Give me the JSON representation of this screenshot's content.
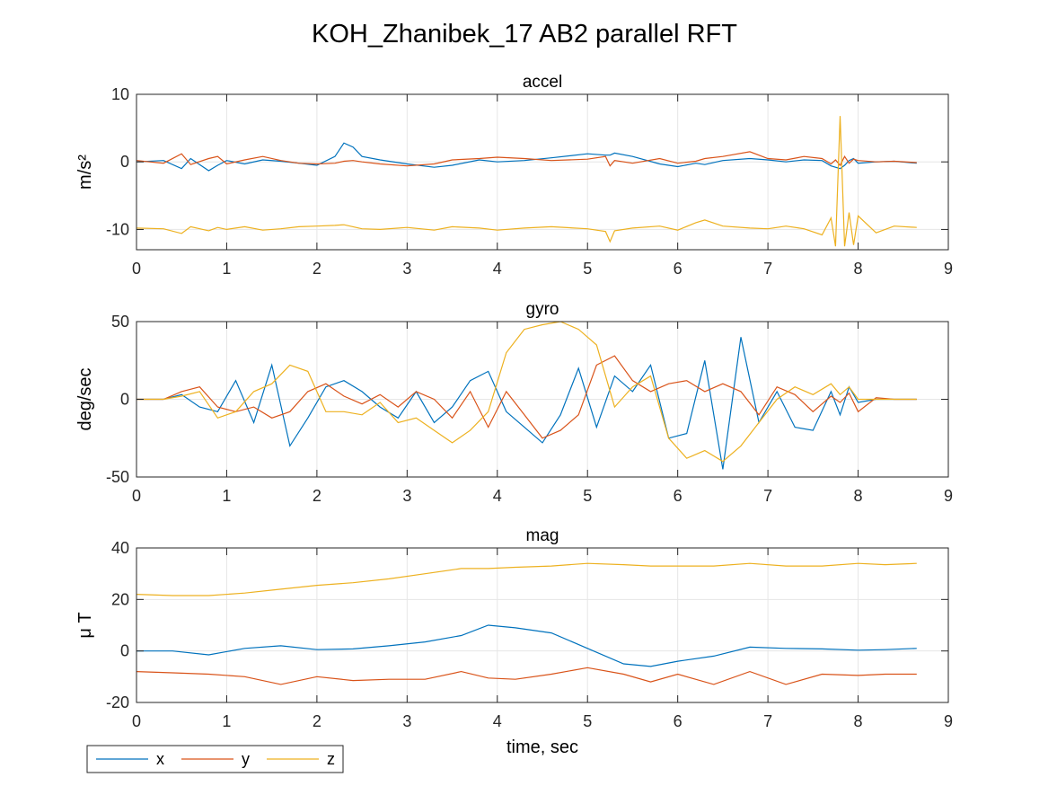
{
  "figure": {
    "title": "KOH_Zhanibek_17 AB2 parallel RFT",
    "xlabel": "time, sec"
  },
  "legend": {
    "placement": "bottom-left",
    "entries": [
      {
        "label": "x",
        "color": "#0072BD"
      },
      {
        "label": "y",
        "color": "#D95319"
      },
      {
        "label": "z",
        "color": "#EDB120"
      }
    ]
  },
  "chart_data": [
    {
      "type": "line",
      "title": "accel",
      "ylabel": "m/s²",
      "xlim": [
        0,
        9
      ],
      "ylim": [
        -13,
        10
      ],
      "xticks": [
        0,
        1,
        2,
        3,
        4,
        5,
        6,
        7,
        8,
        9
      ],
      "yticks": [
        -10,
        0,
        10
      ],
      "grid": true,
      "x": [
        0,
        0.3,
        0.5,
        0.6,
        0.8,
        0.9,
        1.0,
        1.2,
        1.4,
        1.6,
        1.8,
        2.0,
        2.2,
        2.3,
        2.4,
        2.5,
        2.7,
        3.0,
        3.3,
        3.5,
        3.8,
        4.0,
        4.3,
        4.6,
        5.0,
        5.2,
        5.25,
        5.3,
        5.5,
        5.8,
        6.0,
        6.2,
        6.3,
        6.5,
        6.8,
        7.0,
        7.2,
        7.4,
        7.6,
        7.7,
        7.75,
        7.8,
        7.85,
        7.9,
        7.95,
        8.0,
        8.2,
        8.4,
        8.65
      ],
      "series": [
        {
          "name": "x",
          "color": "#0072BD",
          "values": [
            0,
            0.2,
            -1.0,
            0.5,
            -1.3,
            -0.5,
            0.2,
            -0.3,
            0.3,
            0.1,
            -0.2,
            -0.5,
            0.8,
            2.8,
            2.2,
            0.8,
            0.3,
            -0.3,
            -0.8,
            -0.5,
            0.3,
            0,
            0.2,
            0.6,
            1.2,
            1.0,
            1.0,
            1.3,
            0.8,
            -0.3,
            -0.7,
            -0.2,
            -0.4,
            0.2,
            0.5,
            0.3,
            0,
            0.3,
            0.2,
            -0.6,
            -0.8,
            -1.0,
            -0.5,
            0.2,
            0.5,
            -0.2,
            0,
            0.1,
            -0.2
          ]
        },
        {
          "name": "y",
          "color": "#D95319",
          "values": [
            0.2,
            -0.2,
            1.2,
            -0.4,
            0.5,
            0.8,
            -0.3,
            0.3,
            0.8,
            0.2,
            -0.2,
            -0.3,
            -0.2,
            0.1,
            0.2,
            0.0,
            -0.3,
            -0.6,
            -0.3,
            0.3,
            0.5,
            0.7,
            0.5,
            0.2,
            0.4,
            0.8,
            -0.6,
            0.2,
            -0.2,
            0.5,
            -0.2,
            0.1,
            0.5,
            0.8,
            1.5,
            0.5,
            0.3,
            0.8,
            0.5,
            -0.3,
            0.3,
            -0.5,
            0.8,
            -0.2,
            0.4,
            0.2,
            0,
            0.1,
            -0.1
          ]
        },
        {
          "name": "z",
          "color": "#EDB120",
          "values": [
            -9.8,
            -9.9,
            -10.6,
            -9.6,
            -10.2,
            -9.7,
            -10.0,
            -9.6,
            -10.1,
            -9.9,
            -9.6,
            -9.5,
            -9.4,
            -9.3,
            -9.6,
            -9.9,
            -10.0,
            -9.7,
            -10.1,
            -9.6,
            -9.8,
            -10.1,
            -9.8,
            -9.6,
            -9.9,
            -10.3,
            -11.8,
            -10.2,
            -9.8,
            -9.5,
            -10.1,
            -9.0,
            -8.6,
            -9.5,
            -9.8,
            -9.9,
            -9.5,
            -9.9,
            -10.8,
            -8.3,
            -12.5,
            6.8,
            -12.5,
            -7.5,
            -12.3,
            -8.0,
            -10.5,
            -9.5,
            -9.7
          ]
        }
      ]
    },
    {
      "type": "line",
      "title": "gyro",
      "ylabel": "deg/sec",
      "xlim": [
        0,
        9
      ],
      "ylim": [
        -50,
        50
      ],
      "xticks": [
        0,
        1,
        2,
        3,
        4,
        5,
        6,
        7,
        8,
        9
      ],
      "yticks": [
        -50,
        0,
        50
      ],
      "grid": true,
      "x": [
        0,
        0.3,
        0.5,
        0.7,
        0.9,
        1.1,
        1.3,
        1.5,
        1.7,
        1.9,
        2.1,
        2.3,
        2.5,
        2.7,
        2.9,
        3.1,
        3.3,
        3.5,
        3.7,
        3.9,
        4.1,
        4.3,
        4.5,
        4.7,
        4.9,
        5.1,
        5.3,
        5.5,
        5.7,
        5.9,
        6.1,
        6.3,
        6.5,
        6.7,
        6.9,
        7.1,
        7.3,
        7.5,
        7.7,
        7.8,
        7.9,
        8.0,
        8.2,
        8.4,
        8.65
      ],
      "series": [
        {
          "name": "x",
          "color": "#0072BD",
          "values": [
            0,
            0,
            3,
            -5,
            -8,
            12,
            -15,
            22,
            -30,
            -12,
            8,
            12,
            5,
            -5,
            -12,
            5,
            -15,
            -5,
            12,
            18,
            -8,
            -18,
            -28,
            -10,
            20,
            -18,
            15,
            5,
            22,
            -25,
            -22,
            25,
            -45,
            40,
            -15,
            5,
            -18,
            -20,
            5,
            -10,
            8,
            -2,
            0,
            0,
            0
          ]
        },
        {
          "name": "y",
          "color": "#D95319",
          "values": [
            0,
            0,
            5,
            8,
            -5,
            -8,
            -5,
            -12,
            -8,
            5,
            10,
            2,
            -3,
            3,
            -5,
            5,
            0,
            -12,
            5,
            -18,
            5,
            -10,
            -25,
            -20,
            -10,
            22,
            28,
            12,
            5,
            10,
            12,
            5,
            10,
            5,
            -10,
            8,
            3,
            -8,
            2,
            -2,
            4,
            -8,
            1,
            0,
            0
          ]
        },
        {
          "name": "z",
          "color": "#EDB120",
          "values": [
            0,
            0,
            2,
            5,
            -12,
            -8,
            5,
            10,
            22,
            18,
            -8,
            -8,
            -10,
            -2,
            -15,
            -12,
            -20,
            -28,
            -20,
            -8,
            30,
            45,
            48,
            50,
            45,
            35,
            -5,
            8,
            15,
            -25,
            -38,
            -33,
            -40,
            -30,
            -15,
            0,
            8,
            3,
            10,
            3,
            8,
            0,
            0,
            0,
            0
          ]
        }
      ]
    },
    {
      "type": "line",
      "title": "mag",
      "ylabel": "μ T",
      "xlim": [
        0,
        9
      ],
      "ylim": [
        -20,
        40
      ],
      "xticks": [
        0,
        1,
        2,
        3,
        4,
        5,
        6,
        7,
        8,
        9
      ],
      "yticks": [
        -20,
        0,
        20,
        40
      ],
      "grid": true,
      "x": [
        0,
        0.4,
        0.8,
        1.2,
        1.6,
        2.0,
        2.4,
        2.8,
        3.2,
        3.6,
        3.9,
        4.2,
        4.6,
        5.0,
        5.4,
        5.7,
        6.0,
        6.4,
        6.8,
        7.2,
        7.6,
        8.0,
        8.3,
        8.65
      ],
      "series": [
        {
          "name": "x",
          "color": "#0072BD",
          "values": [
            0,
            0,
            -1.5,
            1,
            2,
            0.5,
            0.8,
            2,
            3.5,
            6,
            10,
            9,
            7,
            1,
            -5,
            -6,
            -4,
            -2,
            1.5,
            1,
            0.8,
            0.3,
            0.5,
            1
          ]
        },
        {
          "name": "y",
          "color": "#D95319",
          "values": [
            -8,
            -8.5,
            -9,
            -10,
            -13,
            -10,
            -11.5,
            -11,
            -11,
            -8,
            -10.5,
            -11,
            -9,
            -6.5,
            -9,
            -12,
            -9,
            -13,
            -8,
            -13,
            -9,
            -9.5,
            -9,
            -9
          ]
        },
        {
          "name": "z",
          "color": "#EDB120",
          "values": [
            22,
            21.5,
            21.5,
            22.5,
            24,
            25.5,
            26.5,
            28,
            30,
            32,
            32,
            32.5,
            33,
            34,
            33.5,
            33,
            33,
            33,
            34,
            33,
            33,
            34,
            33.5,
            34
          ]
        }
      ]
    }
  ]
}
